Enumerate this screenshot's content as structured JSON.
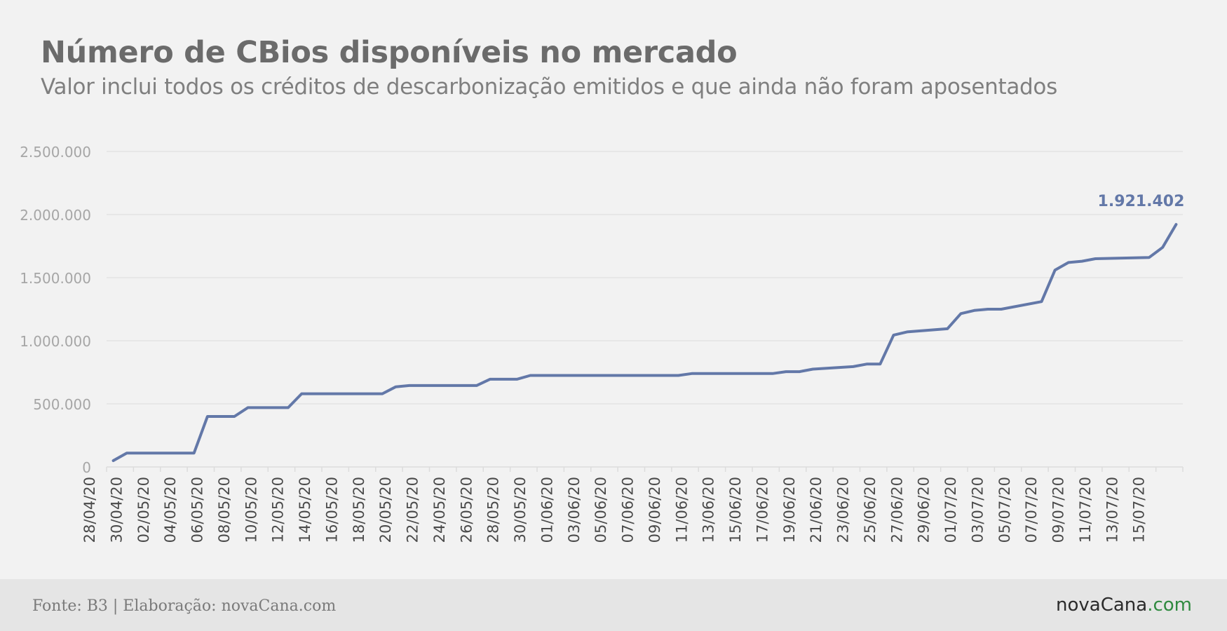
{
  "header": {
    "title": "Número de CBios disponíveis no mercado",
    "subtitle": "Valor inclui todos os créditos de descarbonização emitidos e que ainda não foram aposentados"
  },
  "footer": {
    "source": "Fonte: B3 | Elaboração: novaCana.com",
    "brand_main": "novaCana",
    "brand_tld": ".com"
  },
  "colors": {
    "line": "#6378a8",
    "grid": "#dcdcdc",
    "axis_text": "#a6a6a6",
    "tick_text": "#4a4a4a",
    "brand_tld": "#2f8a3f"
  },
  "chart_data": {
    "type": "line",
    "title": "Número de CBios disponíveis no mercado",
    "subtitle": "Valor inclui todos os créditos de descarbonização emitidos e que ainda não foram aposentados",
    "xlabel": "",
    "ylabel": "",
    "ylim": [
      0,
      2500000
    ],
    "y_ticks": [
      0,
      500000,
      1000000,
      1500000,
      2000000,
      2500000
    ],
    "y_tick_labels": [
      "0",
      "500.000",
      "1.000.000",
      "1.500.000",
      "2.000.000",
      "2.500.000"
    ],
    "x_tick_labels": [
      "28/04/20",
      "30/04/20",
      "02/05/20",
      "04/05/20",
      "06/05/20",
      "08/05/20",
      "10/05/20",
      "12/05/20",
      "14/05/20",
      "16/05/20",
      "18/05/20",
      "20/05/20",
      "22/05/20",
      "24/05/20",
      "26/05/20",
      "28/05/20",
      "30/05/20",
      "01/06/20",
      "03/06/20",
      "05/06/20",
      "07/06/20",
      "09/06/20",
      "11/06/20",
      "13/06/20",
      "15/06/20",
      "17/06/20",
      "19/06/20",
      "21/06/20",
      "23/06/20",
      "25/06/20",
      "27/06/20",
      "29/06/20",
      "01/07/20",
      "03/07/20",
      "05/07/20",
      "07/07/20",
      "09/07/20",
      "11/07/20",
      "13/07/20",
      "15/07/20"
    ],
    "grid": true,
    "legend": "none",
    "series": [
      {
        "x": [
          "28/04/20",
          "29/04/20",
          "30/04/20",
          "04/05/20",
          "05/05/20",
          "07/05/20",
          "08/05/20",
          "11/05/20",
          "12/05/20",
          "18/05/20",
          "19/05/20",
          "20/05/20",
          "25/05/20",
          "26/05/20",
          "28/05/20",
          "29/05/20",
          "09/06/20",
          "10/06/20",
          "16/06/20",
          "17/06/20",
          "18/06/20",
          "19/06/20",
          "22/06/20",
          "23/06/20",
          "24/06/20",
          "25/06/20",
          "26/06/20",
          "29/06/20",
          "30/06/20",
          "01/07/20",
          "02/07/20",
          "03/07/20",
          "06/07/20",
          "07/07/20",
          "08/07/20",
          "09/07/20",
          "10/07/20",
          "14/07/20",
          "15/07/20",
          "16/07/20"
        ],
        "values": [
          50000,
          110000,
          110000,
          110000,
          400000,
          400000,
          470000,
          470000,
          580000,
          580000,
          635000,
          645000,
          645000,
          695000,
          695000,
          725000,
          725000,
          740000,
          740000,
          755000,
          755000,
          775000,
          795000,
          815000,
          815000,
          1045000,
          1070000,
          1095000,
          1215000,
          1240000,
          1250000,
          1250000,
          1310000,
          1560000,
          1620000,
          1630000,
          1650000,
          1660000,
          1740000,
          1921402
        ]
      }
    ],
    "annotations": [
      {
        "x": "16/07/20",
        "text": "1.921.402"
      }
    ]
  }
}
